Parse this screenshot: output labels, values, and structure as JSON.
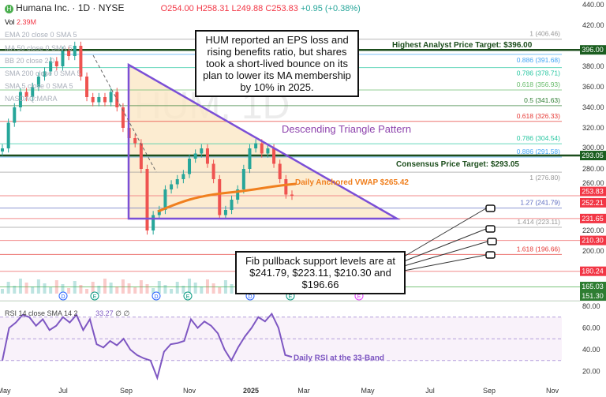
{
  "header": {
    "title": "Humana Inc. · 1D · NYSE",
    "open": "O254.00",
    "high": "H258.31",
    "low": "L249.88",
    "close": "C253.83",
    "change": "+0.95 (+0.38%)",
    "volume_label": "Vol",
    "volume": "2.39M"
  },
  "indicators": [
    "EMA 20 close 0 SMA 5",
    "MA 50 close 0 SMA 5",
    "BB 20 close 2 0",
    "SMA 200 close 0 SMA 5",
    "SMA 5 close 0 SMA 5",
    "NASDAQ:MARA"
  ],
  "rsi_legend": {
    "label": "RSI 14 close SMA 14 2",
    "value": "33.27",
    "extra": "∅ ∅"
  },
  "annotations": {
    "top_box": "HUM reported an EPS loss and rising benefits ratio, but shares took a short-lived bounce on its plan to lower its MA membership by 10% in 2025.",
    "fib_box": "Fib pullback support levels are at $241.79, $223.11, $210.30 and $196.66",
    "pattern": "Descending Triangle Pattern",
    "highest_target": "Highest Analyst Price Target: $396.00",
    "consensus_target": "Consensus Price Target: $293.05",
    "vwap": "Daily Anchored VWAP $265.42",
    "rsi_note": "Daily RSI at the 33-Band",
    "watermark": "HUM, 1D"
  },
  "colors": {
    "up": "#26a69a",
    "down": "#ef5350",
    "triangle": "#7b4fd6",
    "vwap": "#f07f1e",
    "rsi": "#7e57c2",
    "target": "#1b4d1b"
  },
  "chart_data": {
    "type": "candlestick",
    "price_ylim": [
      140,
      440
    ],
    "price_ticks": [
      440,
      420,
      380,
      360,
      340,
      320,
      300,
      280,
      260,
      220,
      200
    ],
    "rsi_ticks": [
      80,
      60,
      40,
      20
    ],
    "xticks": [
      "May",
      "Jul",
      "Sep",
      "Nov",
      "2025",
      "Mar",
      "May",
      "Jul",
      "Sep",
      "Nov"
    ],
    "closes": [
      300,
      325,
      340,
      355,
      350,
      360,
      370,
      375,
      385,
      380,
      395,
      390,
      400,
      370,
      350,
      345,
      350,
      345,
      355,
      340,
      320,
      310,
      305,
      280,
      220,
      235,
      240,
      260,
      265,
      270,
      275,
      290,
      295,
      300,
      285,
      270,
      235,
      240,
      250,
      260,
      280,
      300,
      305,
      295,
      300,
      285,
      270,
      255,
      253.83
    ],
    "rsi": [
      30,
      60,
      65,
      72,
      70,
      62,
      68,
      58,
      62,
      70,
      65,
      72,
      58,
      68,
      45,
      42,
      48,
      44,
      50,
      40,
      35,
      32,
      30,
      14,
      38,
      45,
      46,
      48,
      68,
      60,
      66,
      62,
      55,
      40,
      30,
      42,
      52,
      60,
      70,
      66,
      73,
      60,
      35,
      33.27
    ],
    "fib_levels": [
      {
        "label": "1 (406.46)",
        "v": 406.46,
        "c": "#999"
      },
      {
        "label": "0.886 (391.68)",
        "v": 391.68,
        "c": "#42a5f5"
      },
      {
        "label": "0.786 (378.71)",
        "v": 378.71,
        "c": "#26c6a0"
      },
      {
        "label": "0.618 (356.93)",
        "v": 356.93,
        "c": "#66bb6a"
      },
      {
        "label": "0.5 (341.63)",
        "v": 341.63,
        "c": "#2e7d32"
      },
      {
        "label": "0.618 (326.33)",
        "v": 326.33,
        "c": "#e53935"
      },
      {
        "label": "0.786 (304.54)",
        "v": 304.54,
        "c": "#26c6a0"
      },
      {
        "label": "0.886 (291.58)",
        "v": 291.58,
        "c": "#42a5f5"
      },
      {
        "label": "1 (276.80)",
        "v": 276.8,
        "c": "#999"
      },
      {
        "label": "1.27 (241.79)",
        "v": 241.79,
        "c": "#5c6bc0"
      },
      {
        "label": "1.414 (223.11)",
        "v": 223.11,
        "c": "#999"
      },
      {
        "label": "1.618 (196.66)",
        "v": 196.66,
        "c": "#e53935"
      }
    ],
    "badges": [
      {
        "label": "396.00",
        "v": 396,
        "c": "#1b5e20"
      },
      {
        "label": "293.05",
        "v": 293.05,
        "c": "#1b5e20"
      },
      {
        "label": "253.83",
        "v": 258,
        "c": "#f23645"
      },
      {
        "label": "252.21",
        "v": 247,
        "c": "#f23645"
      },
      {
        "label": "231.65",
        "v": 231.65,
        "c": "#f23645"
      },
      {
        "label": "210.30",
        "v": 210.3,
        "c": "#f23645"
      },
      {
        "label": "180.24",
        "v": 180.24,
        "c": "#f23645"
      },
      {
        "label": "165.03",
        "v": 165.03,
        "c": "#2e7d32"
      },
      {
        "label": "151.30",
        "v": 151.3,
        "c": "#2e7d32"
      }
    ],
    "events": [
      {
        "t": "D",
        "x": 80
      },
      {
        "t": "E",
        "x": 120
      },
      {
        "t": "D",
        "x": 198
      },
      {
        "t": "E",
        "x": 238
      },
      {
        "t": "D",
        "x": 317
      },
      {
        "t": "E",
        "x": 368
      },
      {
        "t": "E",
        "x": 455
      }
    ]
  }
}
